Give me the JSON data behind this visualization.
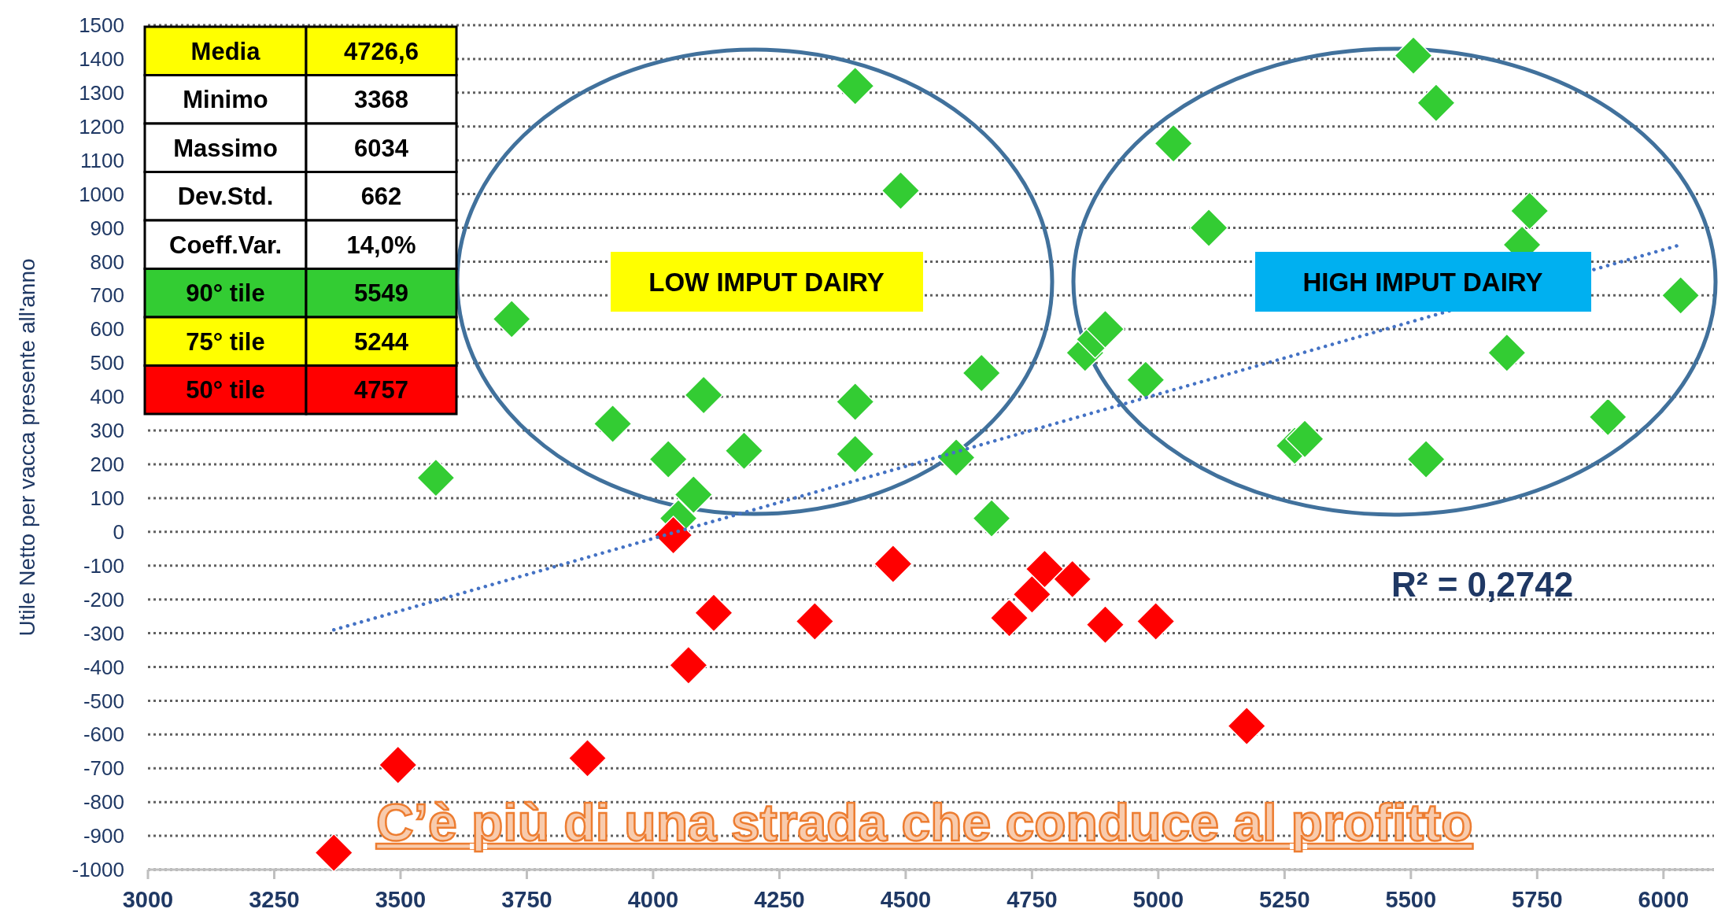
{
  "chart_data": {
    "type": "scatter",
    "ylabel": "Utile Netto per vacca presente all'anno",
    "xlim": [
      3000,
      6100
    ],
    "xticks": [
      3000,
      3250,
      3500,
      3750,
      4000,
      4250,
      4500,
      4750,
      5000,
      5250,
      5500,
      5750,
      6000
    ],
    "ylim": [
      -1000,
      1500
    ],
    "yticks": [
      -1000,
      -900,
      -800,
      -700,
      -600,
      -500,
      -400,
      -300,
      -200,
      -100,
      0,
      100,
      200,
      300,
      400,
      500,
      600,
      700,
      800,
      900,
      1000,
      1100,
      1200,
      1300,
      1400,
      1500
    ],
    "grid": "y",
    "marker": "diamond",
    "series": [
      {
        "color": "#33cc33",
        "x": [
          3570,
          3720,
          3920,
          4030,
          4080,
          4050,
          4100,
          4180,
          4400,
          4400,
          4400,
          4490,
          4600,
          4650,
          4670,
          4855,
          4875,
          4895,
          4975,
          5030,
          5100,
          5270,
          5290,
          5505,
          5550,
          5690,
          5720,
          5735,
          5530,
          5890,
          6034
        ],
        "values": [
          160,
          630,
          320,
          215,
          110,
          40,
          405,
          240,
          1320,
          385,
          230,
          1010,
          220,
          470,
          40,
          530,
          570,
          600,
          450,
          1150,
          900,
          255,
          275,
          1410,
          1270,
          530,
          850,
          950,
          215,
          340,
          700
        ]
      },
      {
        "color": "#ff0000",
        "x": [
          3368,
          3495,
          3870,
          4040,
          4070,
          4120,
          4320,
          4475,
          4705,
          4750,
          4775,
          4830,
          4895,
          4995,
          5175
        ],
        "values": [
          -950,
          -690,
          -670,
          -10,
          -395,
          -240,
          -265,
          -95,
          -255,
          -185,
          -110,
          -140,
          -275,
          -265,
          -575
        ]
      },
      {
        "type": "line",
        "color": "#4472c4",
        "line_style": "dotted",
        "marker": "none",
        "x": [
          3368,
          6034
        ],
        "values": [
          -290,
          850
        ]
      }
    ],
    "annotations": [
      "Media",
      "4726,6",
      "Minimo",
      "3368",
      "Massimo",
      "6034",
      "Dev.Std.",
      "662",
      "Coeff.Var.",
      "14,0%",
      "90° tile",
      "5549",
      "75° tile",
      "5244",
      "50° tile",
      "4757",
      "LOW IMPUT DAIRY",
      "HIGH IMPUT DAIRY",
      "R² = 0,2742",
      "C’è più di una strada che conduce al profitto"
    ]
  }
}
